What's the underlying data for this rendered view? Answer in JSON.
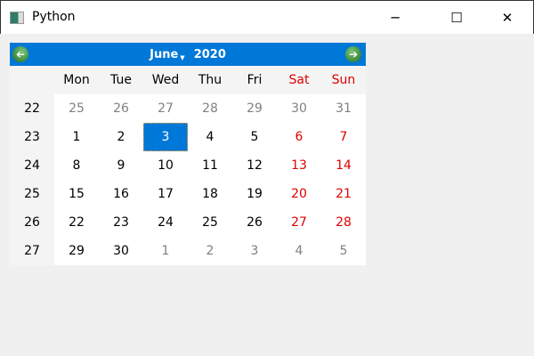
{
  "window": {
    "title": "Python",
    "minimize": "─",
    "maximize": "☐",
    "close": "✕"
  },
  "nav": {
    "month": "June",
    "year": "2020",
    "prev_icon": "arrow-left-icon",
    "next_icon": "arrow-right-icon"
  },
  "weekday_headers": [
    "Mon",
    "Tue",
    "Wed",
    "Thu",
    "Fri",
    "Sat",
    "Sun"
  ],
  "weekend_color": "#e00000",
  "selected_color": "#0078d7",
  "selected_date": "3",
  "weeks": [
    {
      "num": "22",
      "days": [
        {
          "n": "25",
          "m": true
        },
        {
          "n": "26",
          "m": true
        },
        {
          "n": "27",
          "m": true
        },
        {
          "n": "28",
          "m": true
        },
        {
          "n": "29",
          "m": true
        },
        {
          "n": "30",
          "m": true
        },
        {
          "n": "31",
          "m": true
        }
      ]
    },
    {
      "num": "23",
      "days": [
        {
          "n": "1"
        },
        {
          "n": "2"
        },
        {
          "n": "3",
          "s": true
        },
        {
          "n": "4"
        },
        {
          "n": "5"
        },
        {
          "n": "6"
        },
        {
          "n": "7"
        }
      ]
    },
    {
      "num": "24",
      "days": [
        {
          "n": "8"
        },
        {
          "n": "9"
        },
        {
          "n": "10"
        },
        {
          "n": "11"
        },
        {
          "n": "12"
        },
        {
          "n": "13"
        },
        {
          "n": "14"
        }
      ]
    },
    {
      "num": "25",
      "days": [
        {
          "n": "15"
        },
        {
          "n": "16"
        },
        {
          "n": "17"
        },
        {
          "n": "18"
        },
        {
          "n": "19"
        },
        {
          "n": "20"
        },
        {
          "n": "21"
        }
      ]
    },
    {
      "num": "26",
      "days": [
        {
          "n": "22"
        },
        {
          "n": "23"
        },
        {
          "n": "24"
        },
        {
          "n": "25"
        },
        {
          "n": "26"
        },
        {
          "n": "27"
        },
        {
          "n": "28"
        }
      ]
    },
    {
      "num": "27",
      "days": [
        {
          "n": "29"
        },
        {
          "n": "30"
        },
        {
          "n": "1",
          "m": true
        },
        {
          "n": "2",
          "m": true
        },
        {
          "n": "3",
          "m": true
        },
        {
          "n": "4",
          "m": true
        },
        {
          "n": "5",
          "m": true
        }
      ]
    }
  ]
}
